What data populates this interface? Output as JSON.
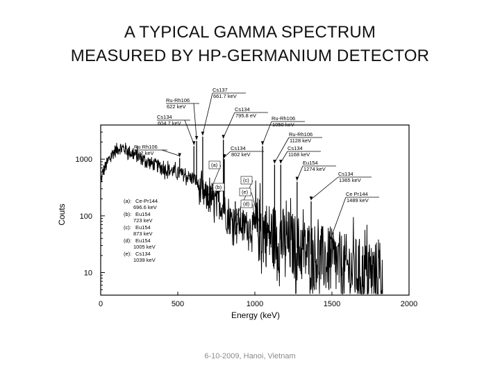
{
  "slide": {
    "title_line1": "A TYPICAL GAMMA SPECTRUM",
    "title_line2": "MEASURED BY HP-GERMANIUM DETECTOR",
    "footer": "6-10-2009, Hanoi, Vietnam"
  },
  "chart_data": {
    "type": "line",
    "xlabel": "Energy (keV)",
    "ylabel": "Couts",
    "xlim": [
      0,
      2000
    ],
    "ylim": [
      4,
      4000
    ],
    "yscale": "log",
    "xticks": [
      "0",
      "500",
      "1000",
      "1500",
      "2000"
    ],
    "yticks": [
      "10",
      "100",
      "1000"
    ],
    "grid": false,
    "line_color": "#000000",
    "continuum": [
      {
        "x": 0,
        "y": 400
      },
      {
        "x": 15,
        "y": 600
      },
      {
        "x": 40,
        "y": 820
      },
      {
        "x": 80,
        "y": 1300
      },
      {
        "x": 120,
        "y": 1600
      },
      {
        "x": 160,
        "y": 1500
      },
      {
        "x": 200,
        "y": 1280
      },
      {
        "x": 260,
        "y": 1050
      },
      {
        "x": 320,
        "y": 860
      },
      {
        "x": 400,
        "y": 700
      },
      {
        "x": 480,
        "y": 600
      },
      {
        "x": 560,
        "y": 500
      },
      {
        "x": 620,
        "y": 420
      },
      {
        "x": 650,
        "y": 250
      },
      {
        "x": 700,
        "y": 200
      },
      {
        "x": 760,
        "y": 170
      },
      {
        "x": 800,
        "y": 150
      },
      {
        "x": 820,
        "y": 90
      },
      {
        "x": 900,
        "y": 75
      },
      {
        "x": 1000,
        "y": 60
      },
      {
        "x": 1100,
        "y": 45
      },
      {
        "x": 1200,
        "y": 35
      },
      {
        "x": 1300,
        "y": 25
      },
      {
        "x": 1400,
        "y": 19
      },
      {
        "x": 1500,
        "y": 15
      },
      {
        "x": 1600,
        "y": 12
      },
      {
        "x": 1700,
        "y": 10
      },
      {
        "x": 1830,
        "y": 9
      }
    ],
    "peaks": [
      {
        "x": 512,
        "y": 1050
      },
      {
        "x": 604.7,
        "y": 1700
      },
      {
        "x": 622,
        "y": 2100
      },
      {
        "x": 661.7,
        "y": 2500
      },
      {
        "x": 696.6,
        "y": 330
      },
      {
        "x": 723,
        "y": 280
      },
      {
        "x": 795.8,
        "y": 2200
      },
      {
        "x": 802,
        "y": 1000
      },
      {
        "x": 873,
        "y": 180
      },
      {
        "x": 1005,
        "y": 120
      },
      {
        "x": 1039,
        "y": 110
      },
      {
        "x": 1050,
        "y": 1700
      },
      {
        "x": 1128,
        "y": 800
      },
      {
        "x": 1168,
        "y": 800
      },
      {
        "x": 1274,
        "y": 400
      },
      {
        "x": 1365,
        "y": 180
      },
      {
        "x": 1489,
        "y": 35
      }
    ],
    "annotations": [
      {
        "label": "Ru-Rh106",
        "value": "622 keV",
        "x": 622
      },
      {
        "label": "Cs137",
        "value": "661.7 keV",
        "x": 661.7
      },
      {
        "label": "Cs134",
        "value": "795.8 eV",
        "x": 795.8
      },
      {
        "label": "Cs134",
        "value": "604.7 keV",
        "x": 604.7
      },
      {
        "label": "Ru-Rh106",
        "value": "1050 keV",
        "x": 1050
      },
      {
        "label": "Ru-Rh106",
        "value": "1128 keV",
        "x": 1128
      },
      {
        "label": "Ru Rh106",
        "value": "512 keV",
        "x": 512
      },
      {
        "label": "Cs134",
        "value": "802 keV",
        "x": 802
      },
      {
        "label": "Cs134",
        "value": "1168 keV",
        "x": 1168
      },
      {
        "label": "Eu154",
        "value": "1274 keV",
        "x": 1274
      },
      {
        "label": "Cs134",
        "value": "1365 keV",
        "x": 1365
      },
      {
        "label": "Ce Pr144",
        "value": "1489 keV",
        "x": 1489
      }
    ],
    "peak_tags": [
      "(a)",
      "(b)",
      "(c)",
      "(e)",
      "(d)"
    ],
    "legend": [
      {
        "tag": "(a):",
        "label": "Ce-Pr144",
        "value": "696.6 keV"
      },
      {
        "tag": "(b):",
        "label": "Eu154",
        "value": "723 keV"
      },
      {
        "tag": "(c):",
        "label": "Eu154",
        "value": "873 keV"
      },
      {
        "tag": "(d):",
        "label": "Eu154",
        "value": "1005 keV"
      },
      {
        "tag": "(e):",
        "label": "Cs134",
        "value": "1039 keV"
      }
    ]
  }
}
